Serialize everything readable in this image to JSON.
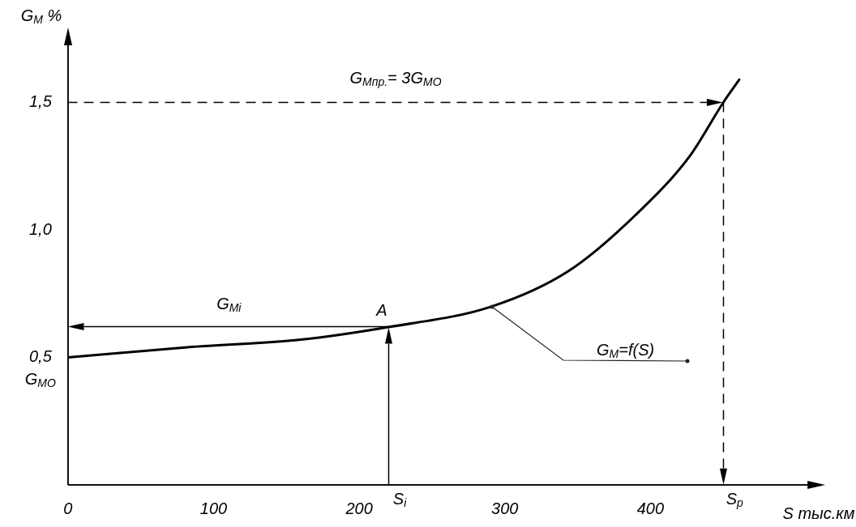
{
  "chart_data": {
    "type": "line",
    "xlabel": "S тыс.км",
    "ylabel": "G$_{М}$ %",
    "xlim": [
      0,
      510
    ],
    "ylim": [
      0,
      1.75
    ],
    "xticks": [
      0,
      100,
      200,
      300,
      400
    ],
    "yticks": [
      {
        "value": 0.5,
        "label": "0,5"
      },
      {
        "value": 1.0,
        "label": "1,0"
      },
      {
        "value": 1.5,
        "label": "1,5"
      }
    ],
    "grid": false,
    "legend": false,
    "marker": "none",
    "series": [
      {
        "color": "#000000",
        "x": [
          0,
          82,
          160,
          221,
          291,
          344,
          390,
          427,
          450,
          461
        ],
        "values": [
          0.5,
          0.54,
          0.57,
          0.62,
          0.7,
          0.84,
          1.06,
          1.29,
          1.5,
          1.59
        ]
      }
    ],
    "ref_lines": [
      {
        "axis": "y",
        "value": 1.5,
        "line_style": "dashed",
        "color": "#000000"
      },
      {
        "axis": "x",
        "value": 450,
        "label": "S$_{p}$",
        "line_style": "dashed",
        "color": "#000000"
      },
      {
        "axis": "x",
        "value": 220,
        "label": "S$_{i}$",
        "line_style": "solid",
        "color": "#000000"
      },
      {
        "axis": "y",
        "value": 0.62,
        "label": "G$_{Мi}$",
        "line_style": "solid",
        "color": "#000000"
      }
    ],
    "annotations": [
      "G$_{Мпр.}$= 3G$_{МО}$",
      {
        "text": "A",
        "x": 220,
        "y": 0.62
      },
      "G$_{М}$=f(S)",
      "G$_{МО}$"
    ]
  }
}
